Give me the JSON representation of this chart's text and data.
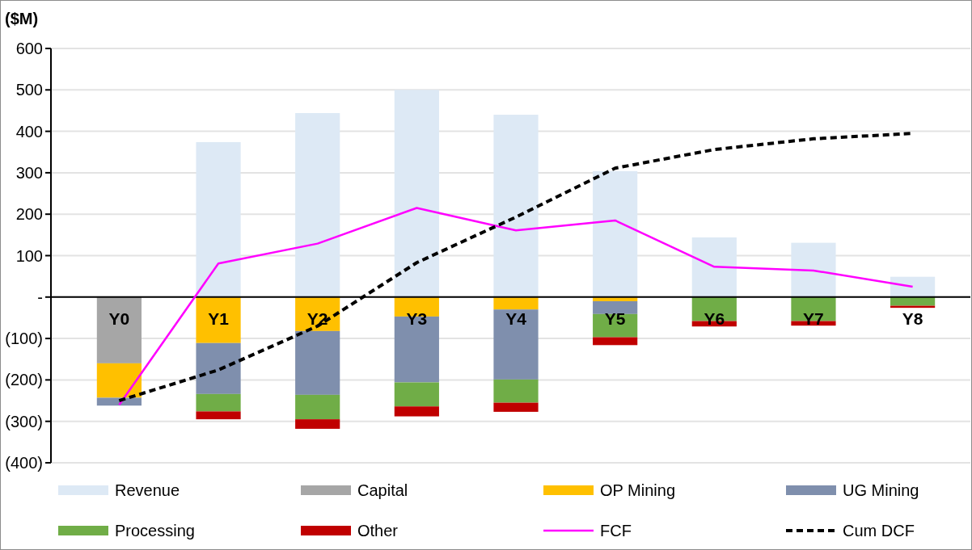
{
  "chart_data": {
    "type": "bar",
    "stacked": true,
    "ylabel": "($M)",
    "categories": [
      "Y0",
      "Y1",
      "Y2",
      "Y3",
      "Y4",
      "Y5",
      "Y6",
      "Y7",
      "Y8"
    ],
    "ylim": [
      -400,
      600
    ],
    "yticks": [
      600,
      500,
      400,
      300,
      200,
      100,
      {
        "value": 0,
        "label": "-"
      },
      {
        "value": -100,
        "label": "(100)"
      },
      {
        "value": -200,
        "label": "(200)"
      },
      {
        "value": -300,
        "label": "(300)"
      },
      {
        "value": -400,
        "label": "(400)"
      }
    ],
    "grid": "y",
    "legend": "bottom",
    "series": [
      {
        "name": "Revenue",
        "color": "#dde9f5",
        "values": [
          null,
          374,
          444,
          500,
          440,
          304,
          144,
          131,
          49
        ]
      },
      {
        "name": "Capital",
        "color": "#a6a6a6",
        "values": [
          -160,
          null,
          null,
          null,
          null,
          null,
          null,
          null,
          null
        ]
      },
      {
        "name": "OP Mining",
        "color": "#ffc000",
        "values": [
          -83,
          -111,
          -82,
          -47,
          -30,
          -10,
          null,
          null,
          null
        ]
      },
      {
        "name": "UG Mining",
        "color": "#7f8fad",
        "values": [
          -19,
          -123,
          -154,
          -159,
          -169,
          -31,
          null,
          null,
          null
        ]
      },
      {
        "name": "Processing",
        "color": "#70ad47",
        "values": [
          null,
          -42,
          -59,
          -58,
          -56,
          -56,
          -58,
          -58,
          -21
        ]
      },
      {
        "name": "Other",
        "color": "#c00000",
        "values": [
          null,
          -19,
          -23,
          -24,
          -22,
          -19,
          -13,
          -11,
          -5
        ]
      },
      {
        "name": "FCF",
        "type": "line",
        "color": "#ff00ff",
        "line_style": "solid",
        "values": [
          -260,
          81,
          129,
          215,
          161,
          185,
          73,
          64,
          25
        ]
      },
      {
        "name": "Cum DCF",
        "type": "line",
        "color": "#000000",
        "line_style": "dashed",
        "values": [
          -250,
          -176,
          -70,
          83,
          193,
          311,
          356,
          382,
          395
        ]
      }
    ]
  }
}
